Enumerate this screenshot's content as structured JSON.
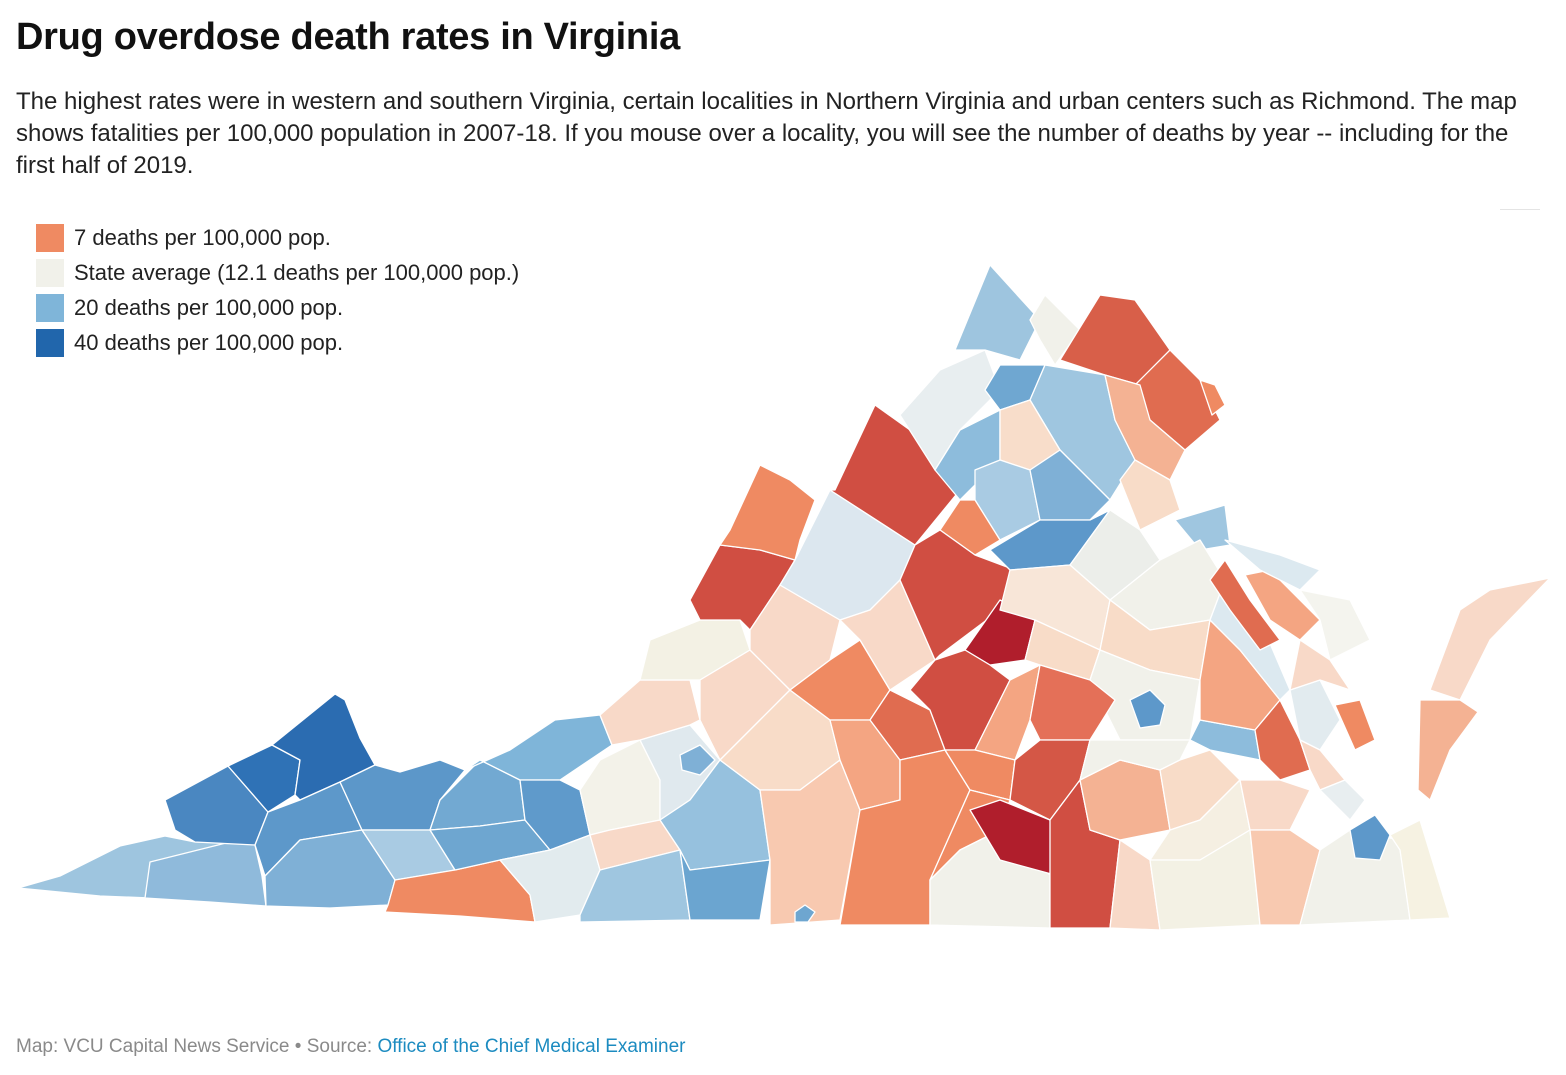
{
  "header": {
    "title": "Drug overdose death rates in Virginia",
    "subtitle": " The highest rates were in western and southern Virginia, certain localities in Northern Virginia and urban centers such as Richmond. The map shows fatalities per 100,000 population in 2007-18. If you mouse over a locality, you will see the number of deaths by year -- including for the first half of 2019."
  },
  "legend": {
    "items": [
      {
        "label": "7 deaths per 100,000 pop.",
        "color": "#ef8a62"
      },
      {
        "label": "State average (12.1 deaths per 100,000 pop.)",
        "color": "#f1f1ea"
      },
      {
        "label": "20 deaths per 100,000 pop.",
        "color": "#7fb5d9"
      },
      {
        "label": "40 deaths per 100,000 pop.",
        "color": "#2166ac"
      }
    ]
  },
  "map": {
    "region": "Virginia",
    "unit": "deaths per 100,000 population, 2007-18",
    "scale": [
      {
        "value": 7,
        "color": "#ef8a62"
      },
      {
        "value": 12.1,
        "color": "#f1f1ea"
      },
      {
        "value": 20,
        "color": "#7fb5d9"
      },
      {
        "value": 40,
        "color": "#2166ac"
      }
    ]
  },
  "footer": {
    "credit": "Map: VCU Capital News Service",
    "separator": " • ",
    "source_label": "Source: ",
    "source_link": "Office of the Chief Medical Examiner"
  }
}
